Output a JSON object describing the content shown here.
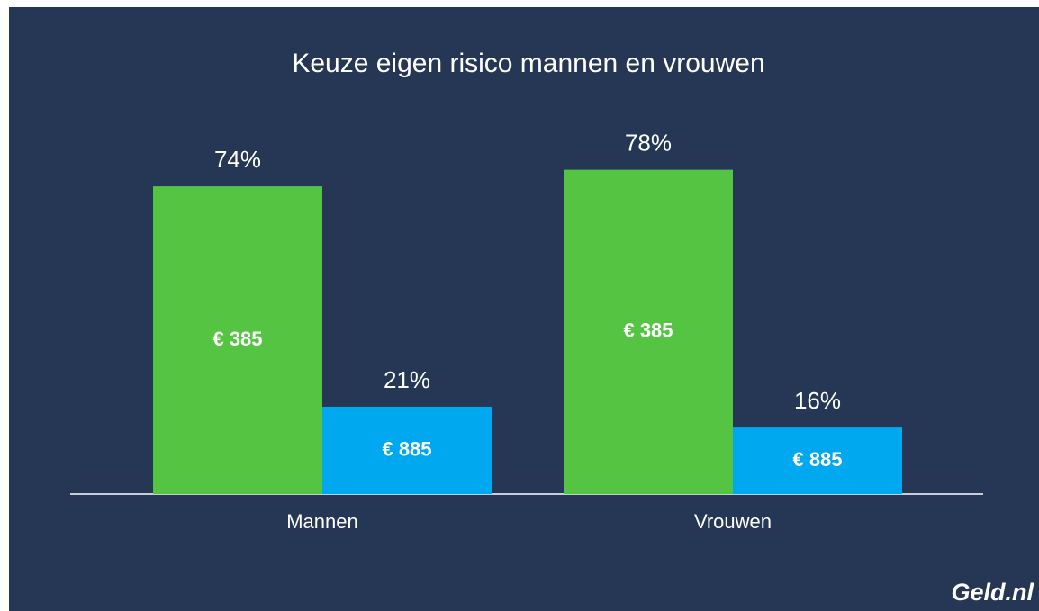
{
  "chart_data": {
    "type": "bar",
    "title": "Keuze eigen risico mannen en vrouwen",
    "categories": [
      "Mannen",
      "Vrouwen"
    ],
    "series": [
      {
        "name": "€ 385",
        "color": "#55c443",
        "values": [
          74,
          78
        ],
        "value_labels": [
          "74%",
          "78%"
        ]
      },
      {
        "name": "€ 885",
        "color": "#00a8ef",
        "values": [
          21,
          16
        ],
        "value_labels": [
          "21%",
          "16%"
        ]
      }
    ],
    "logo": "Geld.nl"
  }
}
